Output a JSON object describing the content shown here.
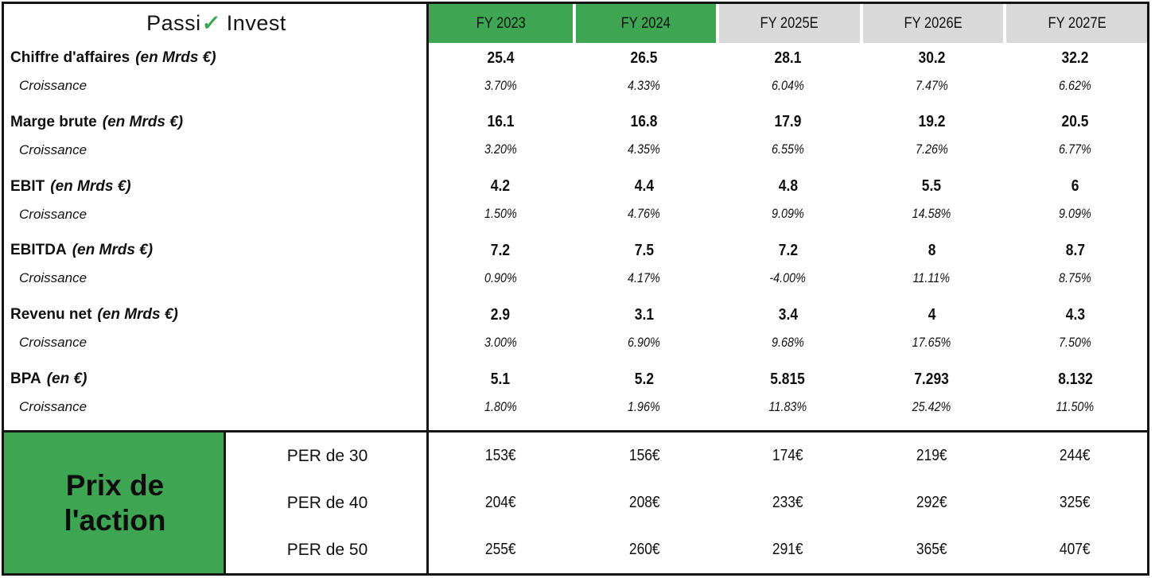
{
  "logo": {
    "prefix": "Passi",
    "check": "✓",
    "suffix": "Invest"
  },
  "colors": {
    "green": "#3EA652",
    "gray": "#D9D9D9",
    "text": "#101010",
    "border": "#141414"
  },
  "growth_label": "Croissance",
  "chart_data": {
    "type": "table",
    "title": "Passiv Invest",
    "columns": [
      "FY 2023",
      "FY 2024",
      "FY 2025E",
      "FY 2026E",
      "FY 2027E"
    ],
    "column_styles": [
      "green",
      "green",
      "gray",
      "gray",
      "gray"
    ],
    "metrics": [
      {
        "name": "Chiffre d'affaires",
        "unit": "(en Mrds €)",
        "values": [
          "25.4",
          "26.5",
          "28.1",
          "30.2",
          "32.2"
        ],
        "growth": [
          "3.70%",
          "4.33%",
          "6.04%",
          "7.47%",
          "6.62%"
        ]
      },
      {
        "name": "Marge brute",
        "unit": "(en Mrds €)",
        "values": [
          "16.1",
          "16.8",
          "17.9",
          "19.2",
          "20.5"
        ],
        "growth": [
          "3.20%",
          "4.35%",
          "6.55%",
          "7.26%",
          "6.77%"
        ]
      },
      {
        "name": "EBIT",
        "unit": "(en Mrds €)",
        "values": [
          "4.2",
          "4.4",
          "4.8",
          "5.5",
          "6"
        ],
        "growth": [
          "1.50%",
          "4.76%",
          "9.09%",
          "14.58%",
          "9.09%"
        ]
      },
      {
        "name": "EBITDA",
        "unit": "(en Mrds €)",
        "values": [
          "7.2",
          "7.5",
          "7.2",
          "8",
          "8.7"
        ],
        "growth": [
          "0.90%",
          "4.17%",
          "-4.00%",
          "11.11%",
          "8.75%"
        ]
      },
      {
        "name": "Revenu net",
        "unit": "(en Mrds €)",
        "values": [
          "2.9",
          "3.1",
          "3.4",
          "4",
          "4.3"
        ],
        "growth": [
          "3.00%",
          "6.90%",
          "9.68%",
          "17.65%",
          "7.50%"
        ]
      },
      {
        "name": "BPA",
        "unit": "(en €)",
        "values": [
          "5.1",
          "5.2",
          "5.815",
          "7.293",
          "8.132"
        ],
        "growth": [
          "1.80%",
          "1.96%",
          "11.83%",
          "25.42%",
          "11.50%"
        ]
      }
    ],
    "price_section": {
      "title_lines": [
        "Prix de",
        "l'action"
      ],
      "rows": [
        {
          "label": "PER de 30",
          "values": [
            "153€",
            "156€",
            "174€",
            "219€",
            "244€"
          ]
        },
        {
          "label": "PER de 40",
          "values": [
            "204€",
            "208€",
            "233€",
            "292€",
            "325€"
          ]
        },
        {
          "label": "PER de 50",
          "values": [
            "255€",
            "260€",
            "291€",
            "365€",
            "407€"
          ]
        }
      ]
    }
  }
}
